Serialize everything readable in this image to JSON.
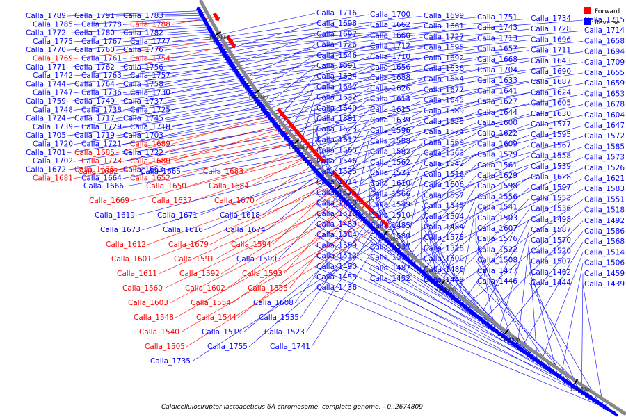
{
  "caption": "Caldicellulosiruptor lactoaceticus 6A chromosome, complete genome. - 0..2674809",
  "legend": [
    {
      "label": "Forward",
      "color": "#ff0000"
    },
    {
      "label": "Reverse",
      "color": "#0000ff"
    }
  ],
  "colors": {
    "forward": "#ff0000",
    "reverse": "#0000ff",
    "backbone": "#888888"
  },
  "scale_ticks": [
    "1850 kbp",
    "1800 kbp",
    "1750 kbp",
    "1700 kbp",
    "1650 kbp",
    "1600 kbp",
    "1550 kbp",
    "1500 kbp"
  ],
  "features": [
    {
      "name": "Calla_1789",
      "strand": "reverse"
    },
    {
      "name": "Calla_1791",
      "strand": "reverse"
    },
    {
      "name": "Calla_1783",
      "strand": "reverse"
    },
    {
      "name": "Calla_1785",
      "strand": "reverse"
    },
    {
      "name": "Calla_1778",
      "strand": "reverse"
    },
    {
      "name": "Calla_1788",
      "strand": "forward"
    },
    {
      "name": "Calla_1772",
      "strand": "reverse"
    },
    {
      "name": "Calla_1780",
      "strand": "reverse"
    },
    {
      "name": "Calla_1782",
      "strand": "reverse"
    },
    {
      "name": "Calla_1775",
      "strand": "reverse"
    },
    {
      "name": "Calla_1767",
      "strand": "reverse"
    },
    {
      "name": "Calla_1777",
      "strand": "reverse"
    },
    {
      "name": "Calla_1770",
      "strand": "reverse"
    },
    {
      "name": "Calla_1760",
      "strand": "reverse"
    },
    {
      "name": "Calla_1776",
      "strand": "reverse"
    },
    {
      "name": "Calla_1769",
      "strand": "forward"
    },
    {
      "name": "Calla_1761",
      "strand": "reverse"
    },
    {
      "name": "Calla_1754",
      "strand": "forward"
    },
    {
      "name": "Calla_1771",
      "strand": "reverse"
    },
    {
      "name": "Calla_1762",
      "strand": "reverse"
    },
    {
      "name": "Calla_1756",
      "strand": "reverse"
    },
    {
      "name": "Calla_1742",
      "strand": "reverse"
    },
    {
      "name": "Calla_1763",
      "strand": "reverse"
    },
    {
      "name": "Calla_1757",
      "strand": "reverse"
    },
    {
      "name": "Calla_1744",
      "strand": "reverse"
    },
    {
      "name": "Calla_1764",
      "strand": "reverse"
    },
    {
      "name": "Calla_1758",
      "strand": "reverse"
    },
    {
      "name": "Calla_1747",
      "strand": "reverse"
    },
    {
      "name": "Calla_1736",
      "strand": "reverse"
    },
    {
      "name": "Calla_1730",
      "strand": "reverse"
    },
    {
      "name": "Calla_1759",
      "strand": "reverse"
    },
    {
      "name": "Calla_1749",
      "strand": "reverse"
    },
    {
      "name": "Calla_1737",
      "strand": "reverse"
    },
    {
      "name": "Calla_1748",
      "strand": "reverse"
    },
    {
      "name": "Calla_1738",
      "strand": "reverse"
    },
    {
      "name": "Calla_1725",
      "strand": "reverse"
    },
    {
      "name": "Calla_1724",
      "strand": "reverse"
    },
    {
      "name": "Calla_1717",
      "strand": "reverse"
    },
    {
      "name": "Calla_1745",
      "strand": "reverse"
    },
    {
      "name": "Calla_1739",
      "strand": "reverse"
    },
    {
      "name": "Calla_1729",
      "strand": "reverse"
    },
    {
      "name": "Calla_1718",
      "strand": "reverse"
    },
    {
      "name": "Calla_1705",
      "strand": "reverse"
    },
    {
      "name": "Calla_1719",
      "strand": "reverse"
    },
    {
      "name": "Calla_1703",
      "strand": "reverse"
    },
    {
      "name": "Calla_1720",
      "strand": "reverse"
    },
    {
      "name": "Calla_1721",
      "strand": "reverse"
    },
    {
      "name": "Calla_1689",
      "strand": "forward"
    },
    {
      "name": "Calla_1701",
      "strand": "reverse"
    },
    {
      "name": "Calla_1685",
      "strand": "forward"
    },
    {
      "name": "Calla_1722",
      "strand": "reverse"
    },
    {
      "name": "Calla_1702",
      "strand": "reverse"
    },
    {
      "name": "Calla_1723",
      "strand": "forward"
    },
    {
      "name": "Calla_1680",
      "strand": "forward"
    },
    {
      "name": "Calla_1672",
      "strand": "reverse"
    },
    {
      "name": "Calla_1675",
      "strand": "forward"
    },
    {
      "name": "Calla_1663",
      "strand": "reverse"
    },
    {
      "name": "Calla_1681",
      "strand": "forward"
    },
    {
      "name": "Calla_1664",
      "strand": "reverse"
    },
    {
      "name": "Calla_1652",
      "strand": "forward"
    },
    {
      "name": "Calla_1682",
      "strand": "forward"
    },
    {
      "name": "Calla_1665",
      "strand": "reverse"
    },
    {
      "name": "Calla_1683",
      "strand": "forward"
    },
    {
      "name": "Calla_1666",
      "strand": "reverse"
    },
    {
      "name": "Calla_1650",
      "strand": "forward"
    },
    {
      "name": "Calla_1684",
      "strand": "forward"
    },
    {
      "name": "Calla_1669",
      "strand": "forward"
    },
    {
      "name": "Calla_1637",
      "strand": "forward"
    },
    {
      "name": "Calla_1670",
      "strand": "forward"
    },
    {
      "name": "Calla_1619",
      "strand": "reverse"
    },
    {
      "name": "Calla_1671",
      "strand": "reverse"
    },
    {
      "name": "Calla_1618",
      "strand": "reverse"
    },
    {
      "name": "Calla_1673",
      "strand": "reverse"
    },
    {
      "name": "Calla_1616",
      "strand": "reverse"
    },
    {
      "name": "Calla_1674",
      "strand": "reverse"
    },
    {
      "name": "Calla_1612",
      "strand": "forward"
    },
    {
      "name": "Calla_1679",
      "strand": "forward"
    },
    {
      "name": "Calla_1594",
      "strand": "forward"
    },
    {
      "name": "Calla_1601",
      "strand": "forward"
    },
    {
      "name": "Calla_1591",
      "strand": "forward"
    },
    {
      "name": "Calla_1590",
      "strand": "reverse"
    },
    {
      "name": "Calla_1611",
      "strand": "forward"
    },
    {
      "name": "Calla_1592",
      "strand": "forward"
    },
    {
      "name": "Calla_1593",
      "strand": "forward"
    },
    {
      "name": "Calla_1560",
      "strand": "forward"
    },
    {
      "name": "Calla_1602",
      "strand": "forward"
    },
    {
      "name": "Calla_1555",
      "strand": "forward"
    },
    {
      "name": "Calla_1603",
      "strand": "forward"
    },
    {
      "name": "Calla_1554",
      "strand": "forward"
    },
    {
      "name": "Calla_1608",
      "strand": "reverse"
    },
    {
      "name": "Calla_1548",
      "strand": "forward"
    },
    {
      "name": "Calla_1544",
      "strand": "forward"
    },
    {
      "name": "Calla_1535",
      "strand": "reverse"
    },
    {
      "name": "Calla_1540",
      "strand": "forward"
    },
    {
      "name": "Calla_1519",
      "strand": "reverse"
    },
    {
      "name": "Calla_1523",
      "strand": "reverse"
    },
    {
      "name": "Calla_1505",
      "strand": "forward"
    },
    {
      "name": "Calla_1755",
      "strand": "reverse"
    },
    {
      "name": "Calla_1741",
      "strand": "reverse"
    },
    {
      "name": "Calla_1735",
      "strand": "reverse"
    },
    {
      "name": "Calla_1716",
      "strand": "reverse"
    },
    {
      "name": "Calla_1700",
      "strand": "reverse"
    },
    {
      "name": "Calla_1699",
      "strand": "reverse"
    },
    {
      "name": "Calla_1751",
      "strand": "reverse"
    },
    {
      "name": "Calla_1734",
      "strand": "reverse"
    },
    {
      "name": "Calla_1715",
      "strand": "reverse"
    },
    {
      "name": "Calla_1698",
      "strand": "reverse"
    },
    {
      "name": "Calla_1662",
      "strand": "reverse"
    },
    {
      "name": "Calla_1661",
      "strand": "reverse"
    },
    {
      "name": "Calla_1743",
      "strand": "reverse"
    },
    {
      "name": "Calla_1728",
      "strand": "reverse"
    },
    {
      "name": "Calla_1714",
      "strand": "reverse"
    },
    {
      "name": "Calla_1697",
      "strand": "reverse"
    },
    {
      "name": "Calla_1660",
      "strand": "reverse"
    },
    {
      "name": "Calla_1727",
      "strand": "reverse"
    },
    {
      "name": "Calla_1713",
      "strand": "reverse"
    },
    {
      "name": "Calla_1696",
      "strand": "reverse"
    },
    {
      "name": "Calla_1658",
      "strand": "reverse"
    },
    {
      "name": "Calla_1726",
      "strand": "reverse"
    },
    {
      "name": "Calla_1712",
      "strand": "reverse"
    },
    {
      "name": "Calla_1695",
      "strand": "reverse"
    },
    {
      "name": "Calla_1657",
      "strand": "reverse"
    },
    {
      "name": "Calla_1711",
      "strand": "reverse"
    },
    {
      "name": "Calla_1694",
      "strand": "reverse"
    },
    {
      "name": "Calla_1646",
      "strand": "reverse"
    },
    {
      "name": "Calla_1710",
      "strand": "reverse"
    },
    {
      "name": "Calla_1692",
      "strand": "reverse"
    },
    {
      "name": "Calla_1668",
      "strand": "reverse"
    },
    {
      "name": "Calla_1643",
      "strand": "reverse"
    },
    {
      "name": "Calla_1709",
      "strand": "reverse"
    },
    {
      "name": "Calla_1691",
      "strand": "reverse"
    },
    {
      "name": "Calla_1656",
      "strand": "reverse"
    },
    {
      "name": "Calla_1636",
      "strand": "reverse"
    },
    {
      "name": "Calla_1704",
      "strand": "reverse"
    },
    {
      "name": "Calla_1690",
      "strand": "reverse"
    },
    {
      "name": "Calla_1655",
      "strand": "reverse"
    },
    {
      "name": "Calla_1634",
      "strand": "reverse"
    },
    {
      "name": "Calla_1688",
      "strand": "reverse"
    },
    {
      "name": "Calla_1654",
      "strand": "reverse"
    },
    {
      "name": "Calla_1633",
      "strand": "reverse"
    },
    {
      "name": "Calla_1687",
      "strand": "reverse"
    },
    {
      "name": "Calla_1659",
      "strand": "reverse"
    },
    {
      "name": "Calla_1642",
      "strand": "reverse"
    },
    {
      "name": "Calla_1626",
      "strand": "reverse"
    },
    {
      "name": "Calla_1677",
      "strand": "reverse"
    },
    {
      "name": "Calla_1641",
      "strand": "reverse"
    },
    {
      "name": "Calla_1624",
      "strand": "reverse"
    },
    {
      "name": "Calla_1653",
      "strand": "reverse"
    },
    {
      "name": "Calla_1632",
      "strand": "reverse"
    },
    {
      "name": "Calla_1613",
      "strand": "reverse"
    },
    {
      "name": "Calla_1645",
      "strand": "reverse"
    },
    {
      "name": "Calla_1627",
      "strand": "reverse"
    },
    {
      "name": "Calla_1605",
      "strand": "reverse"
    },
    {
      "name": "Calla_1678",
      "strand": "reverse"
    },
    {
      "name": "Calla_1640",
      "strand": "reverse"
    },
    {
      "name": "Calla_1615",
      "strand": "reverse"
    },
    {
      "name": "Calla_1589",
      "strand": "reverse"
    },
    {
      "name": "Calla_1644",
      "strand": "reverse"
    },
    {
      "name": "Calla_1630",
      "strand": "reverse"
    },
    {
      "name": "Calla_1604",
      "strand": "reverse"
    },
    {
      "name": "Calla_1581",
      "strand": "reverse"
    },
    {
      "name": "Calla_1639",
      "strand": "reverse"
    },
    {
      "name": "Calla_1625",
      "strand": "reverse"
    },
    {
      "name": "Calla_1600",
      "strand": "reverse"
    },
    {
      "name": "Calla_1577",
      "strand": "reverse"
    },
    {
      "name": "Calla_1647",
      "strand": "reverse"
    },
    {
      "name": "Calla_1623",
      "strand": "reverse"
    },
    {
      "name": "Calla_1596",
      "strand": "reverse"
    },
    {
      "name": "Calla_1574",
      "strand": "reverse"
    },
    {
      "name": "Calla_1622",
      "strand": "reverse"
    },
    {
      "name": "Calla_1595",
      "strand": "reverse"
    },
    {
      "name": "Calla_1572",
      "strand": "reverse"
    },
    {
      "name": "Calla_1617",
      "strand": "reverse"
    },
    {
      "name": "Calla_1588",
      "strand": "reverse"
    },
    {
      "name": "Calla_1569",
      "strand": "reverse"
    },
    {
      "name": "Calla_1609",
      "strand": "reverse"
    },
    {
      "name": "Calla_1567",
      "strand": "reverse"
    },
    {
      "name": "Calla_1585",
      "strand": "reverse"
    },
    {
      "name": "Calla_1565",
      "strand": "reverse"
    },
    {
      "name": "Calla_1582",
      "strand": "reverse"
    },
    {
      "name": "Calla_1563",
      "strand": "reverse"
    },
    {
      "name": "Calla_1579",
      "strand": "reverse"
    },
    {
      "name": "Calla_1558",
      "strand": "reverse"
    },
    {
      "name": "Calla_1573",
      "strand": "reverse"
    },
    {
      "name": "Calla_1546",
      "strand": "reverse"
    },
    {
      "name": "Calla_1562",
      "strand": "reverse"
    },
    {
      "name": "Calla_1542",
      "strand": "reverse"
    },
    {
      "name": "Calla_1561",
      "strand": "reverse"
    },
    {
      "name": "Calla_1539",
      "strand": "reverse"
    },
    {
      "name": "Calla_1526",
      "strand": "reverse"
    },
    {
      "name": "Calla_1525",
      "strand": "reverse"
    },
    {
      "name": "Calla_1521",
      "strand": "reverse"
    },
    {
      "name": "Calla_1516",
      "strand": "reverse"
    },
    {
      "name": "Calla_1629",
      "strand": "reverse"
    },
    {
      "name": "Calla_1628",
      "strand": "reverse"
    },
    {
      "name": "Calla_1621",
      "strand": "reverse"
    },
    {
      "name": "Calla_1614",
      "strand": "reverse"
    },
    {
      "name": "Calla_1610",
      "strand": "reverse"
    },
    {
      "name": "Calla_1606",
      "strand": "reverse"
    },
    {
      "name": "Calla_1598",
      "strand": "reverse"
    },
    {
      "name": "Calla_1597",
      "strand": "reverse"
    },
    {
      "name": "Calla_1583",
      "strand": "reverse"
    },
    {
      "name": "Calla_1575",
      "strand": "reverse"
    },
    {
      "name": "Calla_1566",
      "strand": "reverse"
    },
    {
      "name": "Calla_1557",
      "strand": "reverse"
    },
    {
      "name": "Calla_1556",
      "strand": "reverse"
    },
    {
      "name": "Calla_1553",
      "strand": "reverse"
    },
    {
      "name": "Calla_1551",
      "strand": "reverse"
    },
    {
      "name": "Calla_1550",
      "strand": "reverse"
    },
    {
      "name": "Calla_1549",
      "strand": "reverse"
    },
    {
      "name": "Calla_1545",
      "strand": "reverse"
    },
    {
      "name": "Calla_1541",
      "strand": "reverse"
    },
    {
      "name": "Calla_1536",
      "strand": "reverse"
    },
    {
      "name": "Calla_1518",
      "strand": "reverse"
    },
    {
      "name": "Calla_1513",
      "strand": "reverse"
    },
    {
      "name": "Calla_1510",
      "strand": "reverse"
    },
    {
      "name": "Calla_1504",
      "strand": "reverse"
    },
    {
      "name": "Calla_1503",
      "strand": "reverse"
    },
    {
      "name": "Calla_1498",
      "strand": "reverse"
    },
    {
      "name": "Calla_1492",
      "strand": "reverse"
    },
    {
      "name": "Calla_1489",
      "strand": "reverse"
    },
    {
      "name": "Calla_1485",
      "strand": "reverse"
    },
    {
      "name": "Calla_1484",
      "strand": "reverse"
    },
    {
      "name": "Calla_1607",
      "strand": "reverse"
    },
    {
      "name": "Calla_1587",
      "strand": "reverse"
    },
    {
      "name": "Calla_1586",
      "strand": "reverse"
    },
    {
      "name": "Calla_1584",
      "strand": "reverse"
    },
    {
      "name": "Calla_1580",
      "strand": "reverse"
    },
    {
      "name": "Calla_1578",
      "strand": "reverse"
    },
    {
      "name": "Calla_1576",
      "strand": "reverse"
    },
    {
      "name": "Calla_1570",
      "strand": "reverse"
    },
    {
      "name": "Calla_1568",
      "strand": "reverse"
    },
    {
      "name": "Calla_1559",
      "strand": "reverse"
    },
    {
      "name": "Calla_1537",
      "strand": "reverse"
    },
    {
      "name": "Calla_1528",
      "strand": "reverse"
    },
    {
      "name": "Calla_1522",
      "strand": "reverse"
    },
    {
      "name": "Calla_1520",
      "strand": "reverse"
    },
    {
      "name": "Calla_1514",
      "strand": "reverse"
    },
    {
      "name": "Calla_1512",
      "strand": "reverse"
    },
    {
      "name": "Calla_1511",
      "strand": "reverse"
    },
    {
      "name": "Calla_1509",
      "strand": "reverse"
    },
    {
      "name": "Calla_1508",
      "strand": "reverse"
    },
    {
      "name": "Calla_1507",
      "strand": "reverse"
    },
    {
      "name": "Calla_1506",
      "strand": "reverse"
    },
    {
      "name": "Calla_1490",
      "strand": "reverse"
    },
    {
      "name": "Calla_1487",
      "strand": "reverse"
    },
    {
      "name": "Calla_1486",
      "strand": "reverse"
    },
    {
      "name": "Calla_1477",
      "strand": "reverse"
    },
    {
      "name": "Calla_1462",
      "strand": "reverse"
    },
    {
      "name": "Calla_1459",
      "strand": "reverse"
    },
    {
      "name": "Calla_1455",
      "strand": "reverse"
    },
    {
      "name": "Calla_1452",
      "strand": "reverse"
    },
    {
      "name": "Calla_1449",
      "strand": "reverse"
    },
    {
      "name": "Calla_1446",
      "strand": "reverse"
    },
    {
      "name": "Calla_1444",
      "strand": "reverse"
    },
    {
      "name": "Calla_1439",
      "strand": "reverse"
    },
    {
      "name": "Calla_1436",
      "strand": "reverse"
    }
  ]
}
